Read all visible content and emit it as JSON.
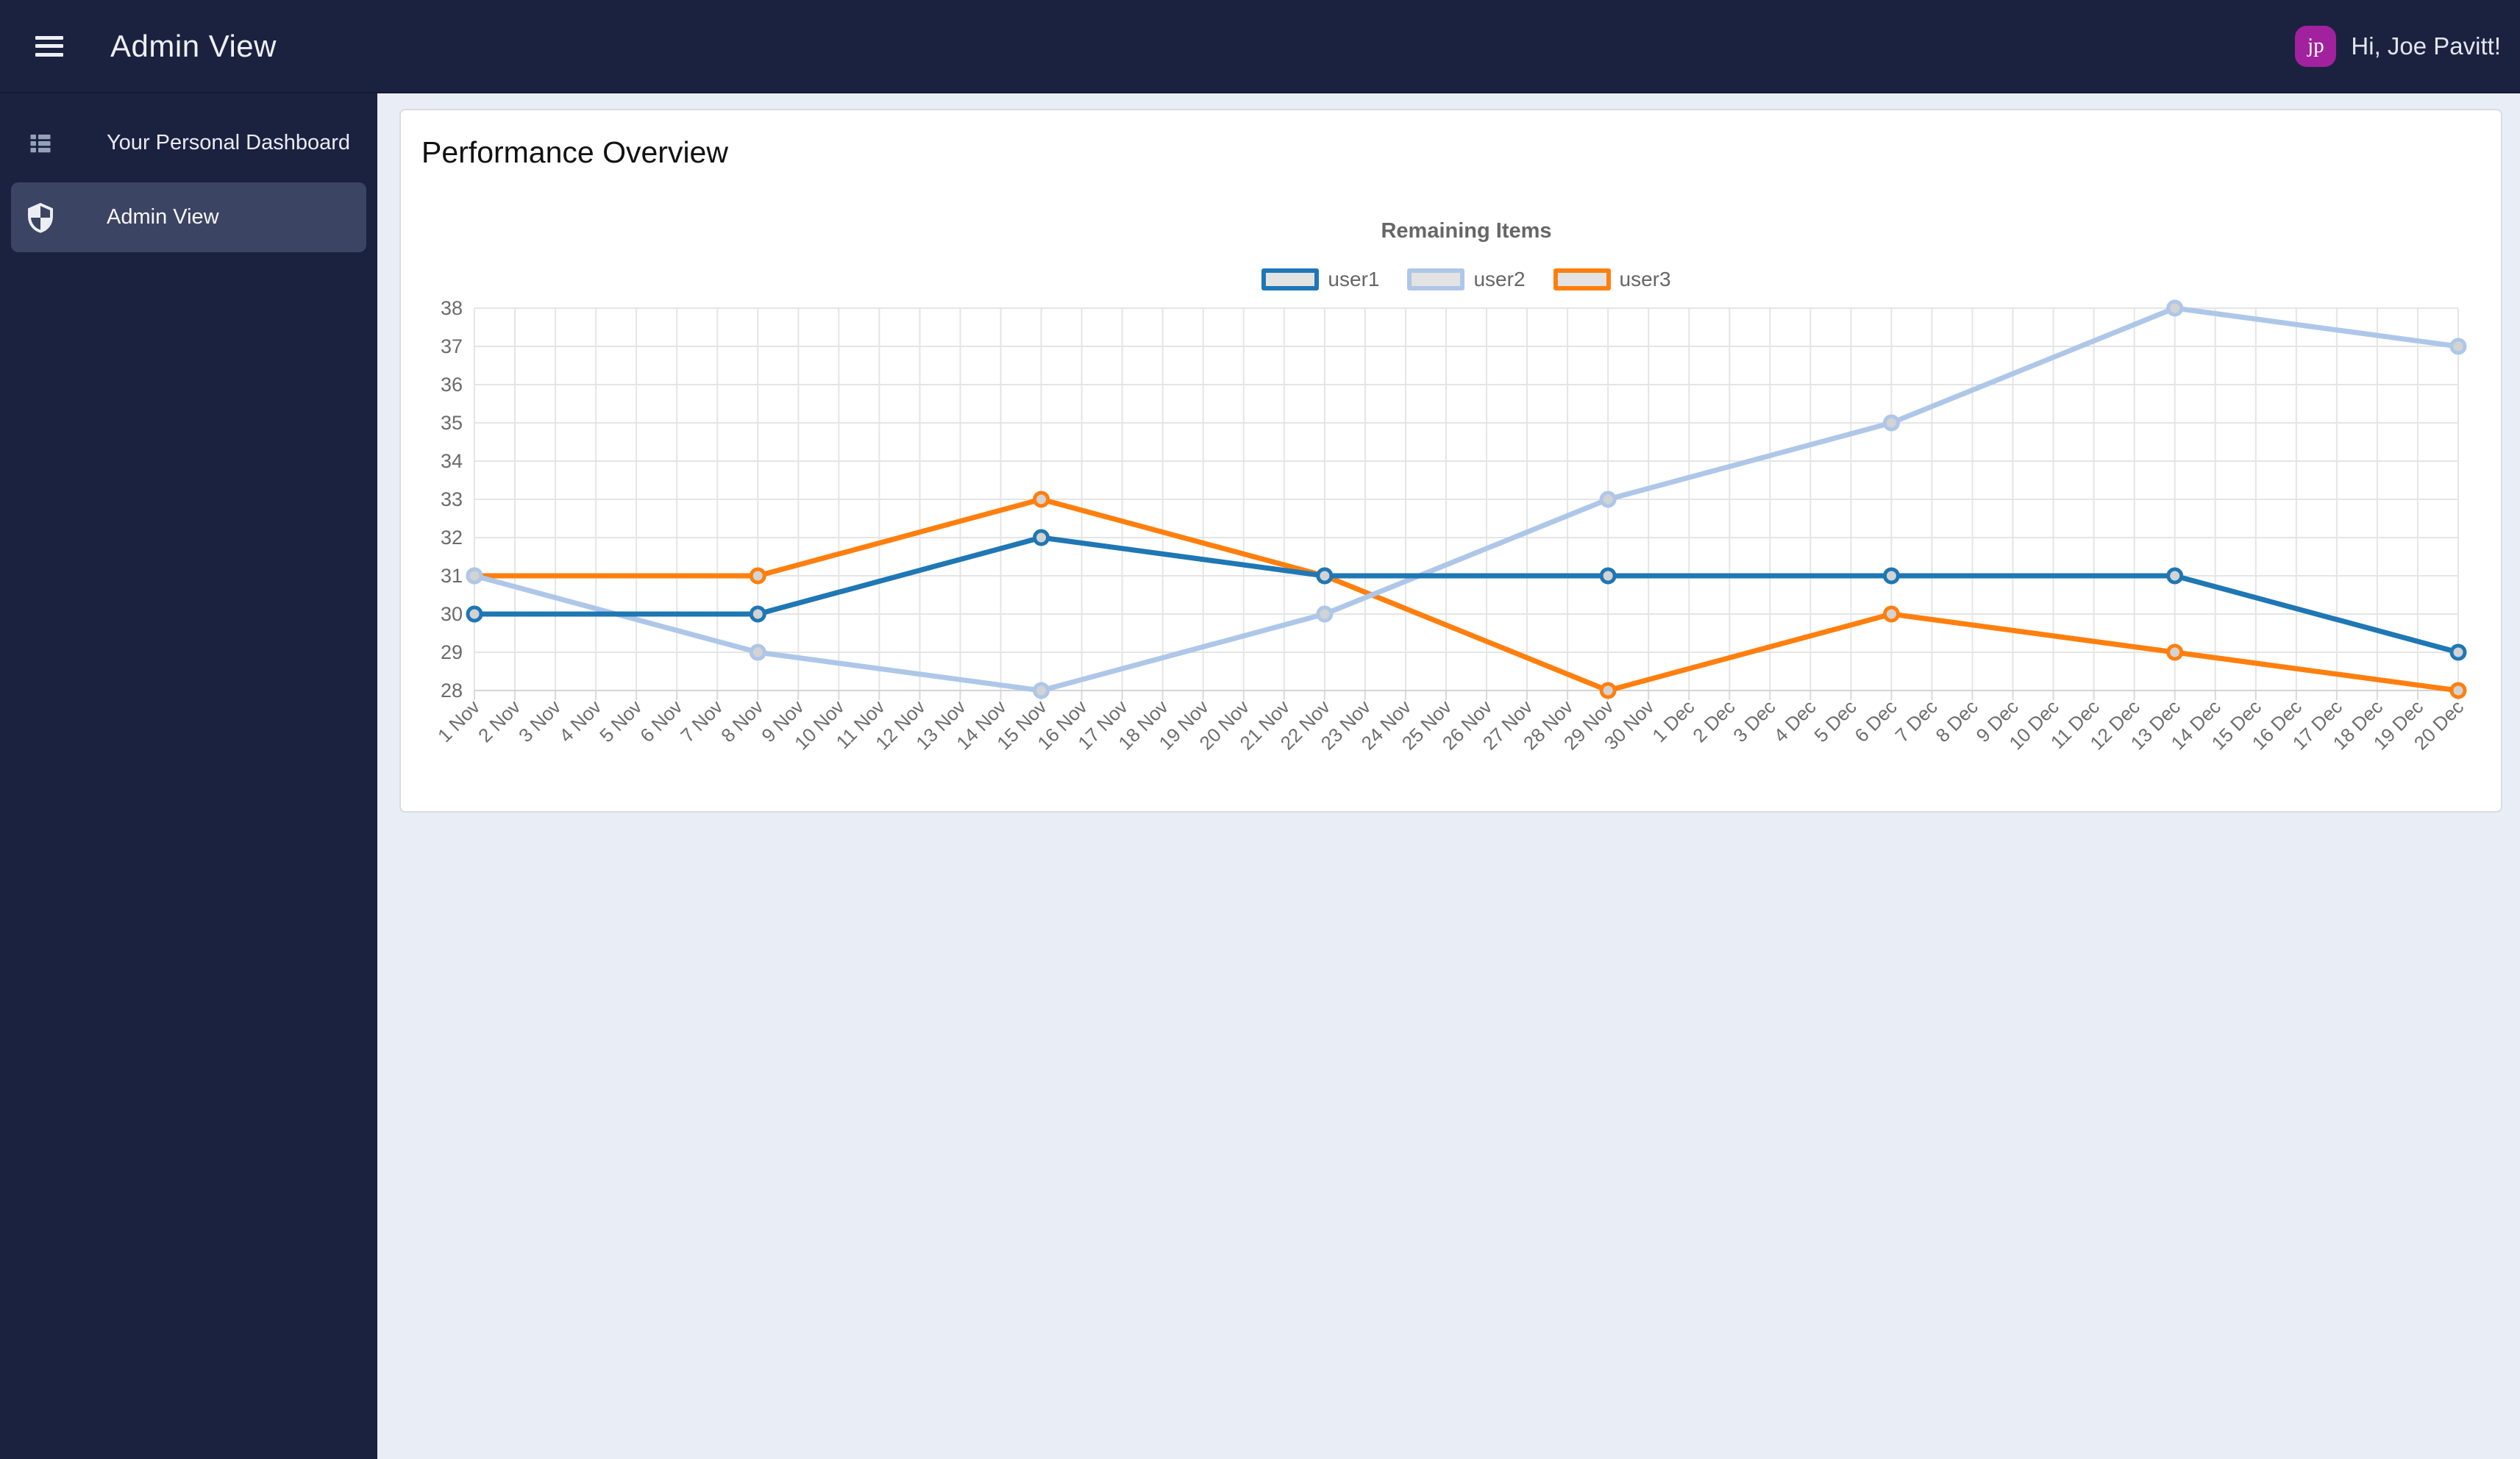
{
  "header": {
    "title": "Admin View",
    "greeting": "Hi, Joe Pavitt!",
    "avatar_initials": "jp"
  },
  "sidebar": {
    "items": [
      {
        "label": "Your Personal Dashboard",
        "icon": "dashboard-list-icon",
        "active": false
      },
      {
        "label": "Admin View",
        "icon": "shield-icon",
        "active": true
      }
    ]
  },
  "main": {
    "card_title": "Performance Overview"
  },
  "chart_data": {
    "type": "line",
    "title": "Remaining Items",
    "x": [
      "1 Nov",
      "2 Nov",
      "3 Nov",
      "4 Nov",
      "5 Nov",
      "6 Nov",
      "7 Nov",
      "8 Nov",
      "9 Nov",
      "10 Nov",
      "11 Nov",
      "12 Nov",
      "13 Nov",
      "14 Nov",
      "15 Nov",
      "16 Nov",
      "17 Nov",
      "18 Nov",
      "19 Nov",
      "20 Nov",
      "21 Nov",
      "22 Nov",
      "23 Nov",
      "24 Nov",
      "25 Nov",
      "26 Nov",
      "27 Nov",
      "28 Nov",
      "29 Nov",
      "30 Nov",
      "1 Dec",
      "2 Dec",
      "3 Dec",
      "4 Dec",
      "5 Dec",
      "6 Dec",
      "7 Dec",
      "8 Dec",
      "9 Dec",
      "10 Dec",
      "11 Dec",
      "12 Dec",
      "13 Dec",
      "14 Dec",
      "15 Dec",
      "16 Dec",
      "17 Dec",
      "18 Dec",
      "19 Dec",
      "20 Dec"
    ],
    "point_x": [
      "1 Nov",
      "8 Nov",
      "15 Nov",
      "22 Nov",
      "29 Nov",
      "6 Dec",
      "13 Dec",
      "20 Dec"
    ],
    "series": [
      {
        "name": "user1",
        "color": "#1f77b4",
        "values": [
          30,
          30,
          32,
          31,
          31,
          31,
          31,
          29
        ]
      },
      {
        "name": "user2",
        "color": "#aec7e8",
        "values": [
          31,
          29,
          28,
          30,
          33,
          35,
          38,
          37
        ]
      },
      {
        "name": "user3",
        "color": "#ff7f0e",
        "values": [
          31,
          31,
          33,
          31,
          28,
          30,
          29,
          28
        ]
      }
    ],
    "ylim": [
      28,
      38
    ],
    "y_tick_step": 1,
    "grid": true,
    "legend_position": "top",
    "point_fill": "#d3d3d3"
  },
  "theme": {
    "header_bg": "#1b2240",
    "sidebar_bg": "#1b2240",
    "active_item_bg": "#3c4463",
    "page_bg": "#e9edf6",
    "card_bg": "#ffffff",
    "avatar_bg": "#a2219e",
    "muted_text": "#666666",
    "grid_line": "#e5e5e5"
  }
}
